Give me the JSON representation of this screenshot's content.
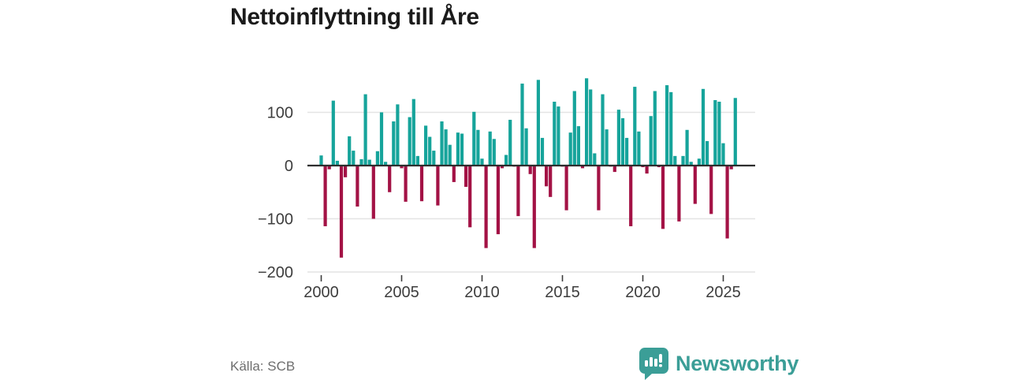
{
  "title": "Nettoinflyttning till Åre",
  "source": "Källa: SCB",
  "branding": {
    "name": "Newsworthy",
    "icon": "newsworthy-speech-bubble-chart-icon"
  },
  "colors": {
    "positive_bar": "#16a49b",
    "negative_bar": "#a31245",
    "brand_teal": "#3b9e97",
    "gridline": "#e4e4e4",
    "zero_line": "#2e2e2e",
    "title_text": "#1b1b1b",
    "axis_text": "#3d3d3d",
    "source_text": "#6e6e6e"
  },
  "chart_data": {
    "type": "bar",
    "title": "Nettoinflyttning till Åre",
    "xlabel": "",
    "ylabel": "",
    "frequency": "quarterly",
    "start": "2000Q1",
    "end": "2025Q4",
    "values": [
      19,
      -114,
      -7,
      122,
      9,
      -173,
      -22,
      55,
      28,
      -77,
      12,
      134,
      11,
      -100,
      27,
      100,
      7,
      -50,
      83,
      115,
      -5,
      -68,
      91,
      125,
      18,
      -67,
      75,
      54,
      28,
      -75,
      83,
      68,
      39,
      -31,
      62,
      60,
      -40,
      -116,
      101,
      67,
      13,
      -155,
      64,
      50,
      -129,
      -5,
      20,
      86,
      -2,
      -95,
      154,
      70,
      -16,
      -155,
      161,
      52,
      -39,
      -59,
      120,
      111,
      -2,
      -84,
      62,
      140,
      74,
      -5,
      164,
      143,
      23,
      -84,
      134,
      68,
      -2,
      -12,
      105,
      89,
      52,
      -114,
      148,
      64,
      -3,
      -15,
      93,
      140,
      -3,
      -119,
      151,
      138,
      18,
      -105,
      18,
      67,
      7,
      -72,
      13,
      144,
      46,
      -91,
      123,
      120,
      42,
      -137,
      -7,
      127
    ],
    "x_tick_labels": [
      "2000",
      "2005",
      "2010",
      "2015",
      "2020",
      "2025"
    ],
    "x_tick_years": [
      2000,
      2005,
      2010,
      2015,
      2020,
      2025
    ],
    "y_ticks": [
      100,
      0,
      -100,
      -200
    ],
    "ylim": [
      -200,
      175
    ],
    "grid": "horizontal",
    "legend": "none",
    "bar_color_rule": "teal for positive values, crimson for negative values"
  }
}
